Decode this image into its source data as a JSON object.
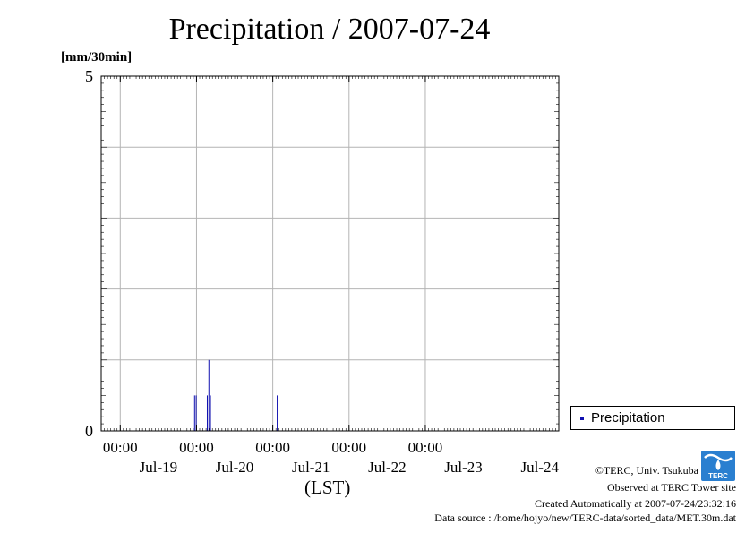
{
  "title": "Precipitation / 2007-07-24",
  "unit_label": "[mm/30min]",
  "x_axis_label": "(LST)",
  "credits": {
    "line1": "©TERC, Univ. Tsukuba",
    "line2": "Observed at TERC Tower site",
    "line3": "Created Automatically at 2007-07-24/23:32:16",
    "line4": "Data source : /home/hojyo/new/TERC-data/sorted_data/MET.30m.dat"
  },
  "logo_text": "TERC",
  "colors": {
    "bar": "#1010b0",
    "grid": "#b4b4b4",
    "axis": "#000000"
  },
  "chart_data": {
    "type": "bar",
    "title": "Precipitation / 2007-07-24",
    "ylabel": "[mm/30min]",
    "xlabel": "(LST)",
    "xlim": [
      "2007-07-18 18:00",
      "2007-07-24 18:00"
    ],
    "ylim": [
      0,
      5
    ],
    "y_ticks": [
      0,
      5
    ],
    "x_tick_labels": [
      {
        "time": "2007-07-19 00:00",
        "label": "00:00"
      },
      {
        "time": "2007-07-20 00:00",
        "label": "00:00"
      },
      {
        "time": "2007-07-21 00:00",
        "label": "00:00"
      },
      {
        "time": "2007-07-22 00:00",
        "label": "00:00"
      },
      {
        "time": "2007-07-23 00:00",
        "label": "00:00"
      }
    ],
    "x_date_labels": [
      {
        "time": "2007-07-19 12:00",
        "label": "Jul-19"
      },
      {
        "time": "2007-07-20 12:00",
        "label": "Jul-20"
      },
      {
        "time": "2007-07-21 12:00",
        "label": "Jul-21"
      },
      {
        "time": "2007-07-22 12:00",
        "label": "Jul-22"
      },
      {
        "time": "2007-07-23 12:00",
        "label": "Jul-23"
      },
      {
        "time": "2007-07-24 12:00",
        "label": "Jul-24"
      }
    ],
    "grid": true,
    "legend": {
      "position": "right",
      "entries": [
        "Precipitation"
      ]
    },
    "series": [
      {
        "name": "Precipitation",
        "points": [
          {
            "x": "2007-07-19 23:30",
            "y": 0.5
          },
          {
            "x": "2007-07-20 00:00",
            "y": 0.5
          },
          {
            "x": "2007-07-20 03:30",
            "y": 0.5
          },
          {
            "x": "2007-07-20 04:00",
            "y": 1.0
          },
          {
            "x": "2007-07-20 04:30",
            "y": 0.5
          },
          {
            "x": "2007-07-21 01:30",
            "y": 0.5
          }
        ]
      }
    ]
  }
}
